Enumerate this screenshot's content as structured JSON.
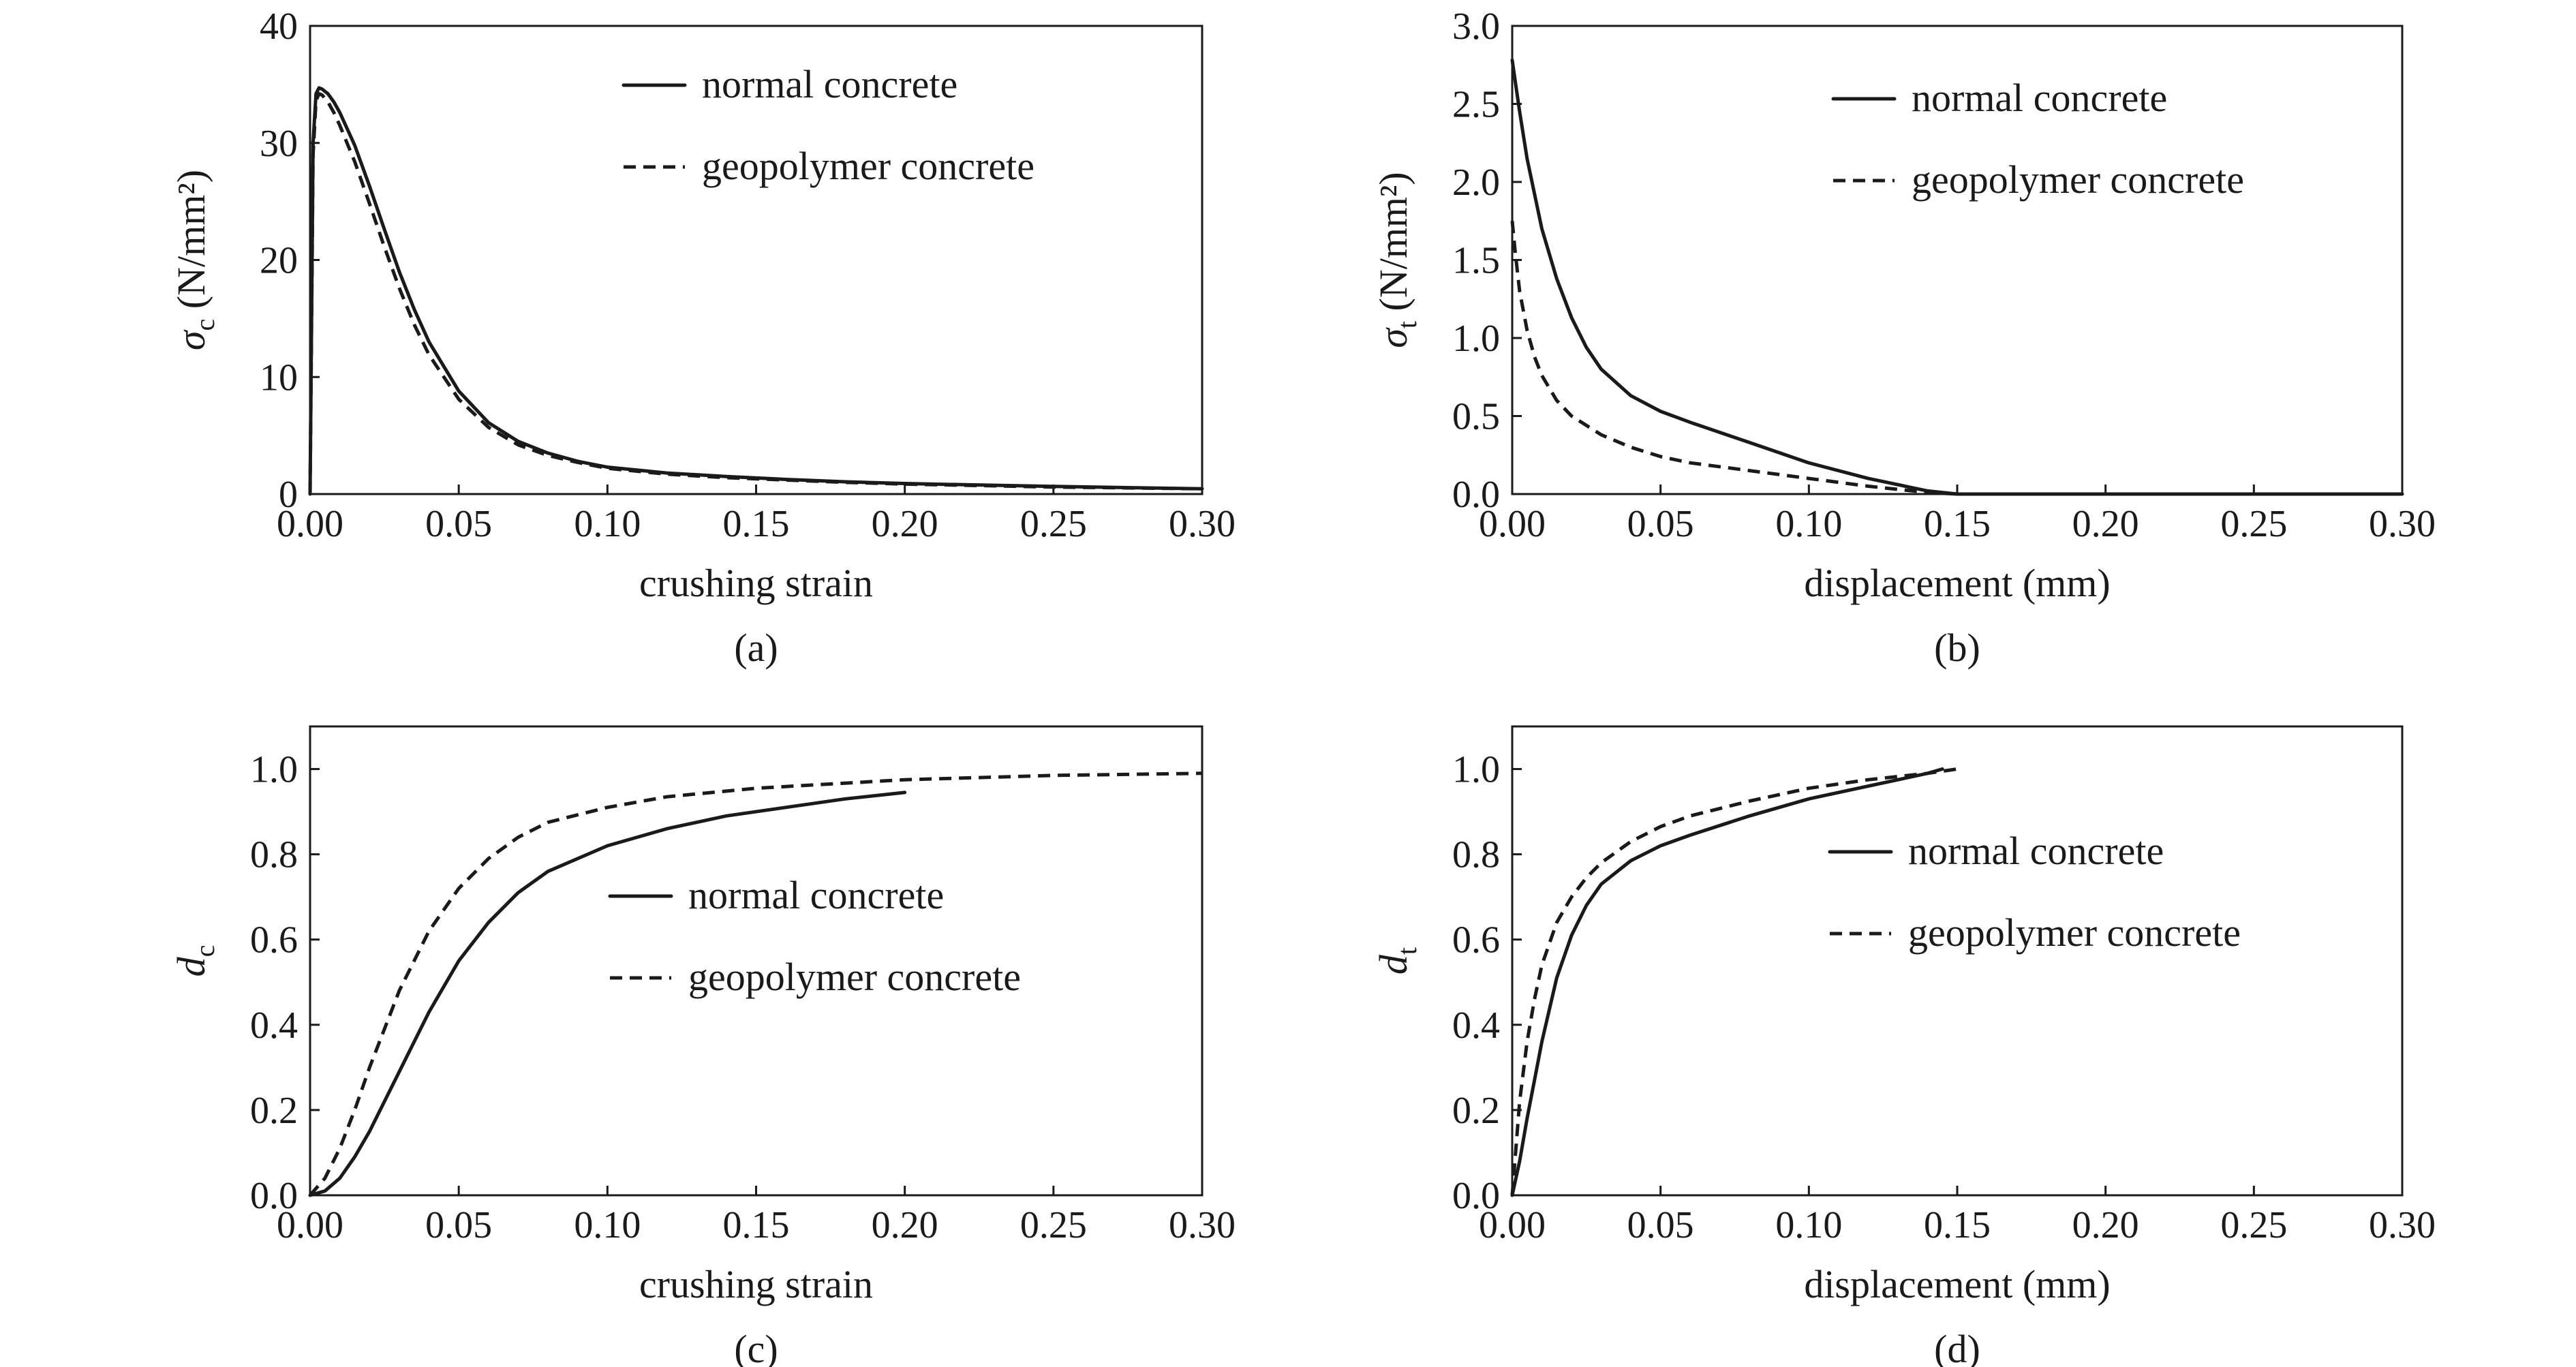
{
  "chart_data": [
    {
      "id": "a",
      "type": "line",
      "panel_label": "(a)",
      "title": "",
      "xlabel": "crushing strain",
      "ylabel": {
        "symbol": "σ",
        "subscript": "c",
        "unit": "(N/mm²)"
      },
      "xlim": [
        0,
        0.3
      ],
      "ylim": [
        0,
        40
      ],
      "xticks": [
        0,
        0.05,
        0.1,
        0.15,
        0.2,
        0.25,
        0.3
      ],
      "xtick_labels": [
        "0.00",
        "0.05",
        "0.10",
        "0.15",
        "0.20",
        "0.25",
        "0.30"
      ],
      "yticks": [
        0,
        10,
        20,
        30,
        40
      ],
      "ytick_labels": [
        "0",
        "10",
        "20",
        "30",
        "40"
      ],
      "legend_position": "top-center",
      "series": [
        {
          "name": "normal concrete",
          "style": "solid",
          "x": [
            0,
            0.001,
            0.002,
            0.003,
            0.004,
            0.006,
            0.008,
            0.01,
            0.015,
            0.02,
            0.025,
            0.03,
            0.035,
            0.04,
            0.05,
            0.06,
            0.07,
            0.08,
            0.09,
            0.1,
            0.12,
            0.14,
            0.16,
            0.18,
            0.2,
            0.22,
            0.25,
            0.3
          ],
          "y": [
            0,
            30,
            34.2,
            34.7,
            34.6,
            34.2,
            33.5,
            32.6,
            29.8,
            26.3,
            22.6,
            19.0,
            15.8,
            13.0,
            8.8,
            6.1,
            4.5,
            3.5,
            2.8,
            2.3,
            1.8,
            1.5,
            1.25,
            1.05,
            0.9,
            0.8,
            0.65,
            0.45
          ]
        },
        {
          "name": "geopolymer concrete",
          "style": "dashed",
          "x": [
            0,
            0.001,
            0.002,
            0.003,
            0.004,
            0.006,
            0.008,
            0.01,
            0.015,
            0.02,
            0.025,
            0.03,
            0.035,
            0.04,
            0.05,
            0.06,
            0.07,
            0.08,
            0.09,
            0.1,
            0.12,
            0.14,
            0.16,
            0.18,
            0.2,
            0.22,
            0.25,
            0.3
          ],
          "y": [
            0,
            29,
            33.6,
            34.2,
            34.1,
            33.5,
            32.6,
            31.5,
            28.4,
            24.8,
            21.1,
            17.6,
            14.5,
            11.9,
            8.1,
            5.7,
            4.2,
            3.3,
            2.7,
            2.2,
            1.7,
            1.4,
            1.2,
            1.0,
            0.85,
            0.75,
            0.6,
            0.45
          ]
        }
      ]
    },
    {
      "id": "b",
      "type": "line",
      "panel_label": "(b)",
      "title": "",
      "xlabel": "displacement (mm)",
      "ylabel": {
        "symbol": "σ",
        "subscript": "t",
        "unit": "(N/mm²)"
      },
      "xlim": [
        0,
        0.3
      ],
      "ylim": [
        0,
        3
      ],
      "xticks": [
        0,
        0.05,
        0.1,
        0.15,
        0.2,
        0.25,
        0.3
      ],
      "xtick_labels": [
        "0.00",
        "0.05",
        "0.10",
        "0.15",
        "0.20",
        "0.25",
        "0.30"
      ],
      "yticks": [
        0,
        0.5,
        1,
        1.5,
        2,
        2.5,
        3
      ],
      "ytick_labels": [
        "0.0",
        "0.5",
        "1.0",
        "1.5",
        "2.0",
        "2.5",
        "3.0"
      ],
      "legend_position": "top-center",
      "series": [
        {
          "name": "normal concrete",
          "style": "solid",
          "x": [
            0,
            0.0025,
            0.005,
            0.01,
            0.015,
            0.02,
            0.025,
            0.03,
            0.04,
            0.05,
            0.06,
            0.08,
            0.1,
            0.12,
            0.14,
            0.15,
            0.3
          ],
          "y": [
            2.78,
            2.45,
            2.15,
            1.7,
            1.38,
            1.13,
            0.94,
            0.8,
            0.63,
            0.53,
            0.46,
            0.33,
            0.2,
            0.1,
            0.02,
            0,
            0
          ]
        },
        {
          "name": "geopolymer concrete",
          "style": "dashed",
          "x": [
            0,
            0.001,
            0.0025,
            0.005,
            0.0075,
            0.01,
            0.015,
            0.02,
            0.03,
            0.04,
            0.05,
            0.06,
            0.08,
            0.1,
            0.12,
            0.14,
            0.15
          ],
          "y": [
            1.75,
            1.55,
            1.3,
            1.05,
            0.88,
            0.76,
            0.6,
            0.5,
            0.38,
            0.3,
            0.24,
            0.2,
            0.15,
            0.1,
            0.05,
            0.01,
            0
          ]
        }
      ]
    },
    {
      "id": "c",
      "type": "line",
      "panel_label": "(c)",
      "title": "",
      "xlabel": "crushing strain",
      "ylabel": {
        "symbol": "d",
        "subscript": "c",
        "unit": ""
      },
      "xlim": [
        0,
        0.3
      ],
      "ylim": [
        0,
        1.1
      ],
      "xticks": [
        0,
        0.05,
        0.1,
        0.15,
        0.2,
        0.25,
        0.3
      ],
      "xtick_labels": [
        "0.00",
        "0.05",
        "0.10",
        "0.15",
        "0.20",
        "0.25",
        "0.30"
      ],
      "yticks": [
        0,
        0.2,
        0.4,
        0.6,
        0.8,
        1.0
      ],
      "ytick_labels": [
        "0.0",
        "0.2",
        "0.4",
        "0.6",
        "0.8",
        "1.0"
      ],
      "legend_position": "center",
      "series": [
        {
          "name": "normal concrete",
          "style": "solid",
          "x": [
            0,
            0.005,
            0.01,
            0.015,
            0.02,
            0.03,
            0.04,
            0.05,
            0.06,
            0.07,
            0.08,
            0.1,
            0.12,
            0.14,
            0.16,
            0.18,
            0.2
          ],
          "y": [
            0,
            0.01,
            0.04,
            0.09,
            0.15,
            0.29,
            0.43,
            0.55,
            0.64,
            0.71,
            0.76,
            0.82,
            0.86,
            0.89,
            0.91,
            0.93,
            0.945
          ]
        },
        {
          "name": "geopolymer concrete",
          "style": "dashed",
          "x": [
            0,
            0.005,
            0.01,
            0.015,
            0.02,
            0.03,
            0.04,
            0.05,
            0.06,
            0.07,
            0.08,
            0.1,
            0.12,
            0.15,
            0.2,
            0.25,
            0.3
          ],
          "y": [
            0,
            0.04,
            0.11,
            0.2,
            0.3,
            0.48,
            0.62,
            0.72,
            0.79,
            0.84,
            0.875,
            0.91,
            0.935,
            0.955,
            0.975,
            0.985,
            0.99
          ]
        }
      ]
    },
    {
      "id": "d",
      "type": "line",
      "panel_label": "(d)",
      "title": "",
      "xlabel": "displacement (mm)",
      "ylabel": {
        "symbol": "d",
        "subscript": "t",
        "unit": ""
      },
      "xlim": [
        0,
        0.3
      ],
      "ylim": [
        0,
        1.1
      ],
      "xticks": [
        0,
        0.05,
        0.1,
        0.15,
        0.2,
        0.25,
        0.3
      ],
      "xtick_labels": [
        "0.00",
        "0.05",
        "0.10",
        "0.15",
        "0.20",
        "0.25",
        "0.30"
      ],
      "yticks": [
        0,
        0.2,
        0.4,
        0.6,
        0.8,
        1.0
      ],
      "ytick_labels": [
        "0.0",
        "0.2",
        "0.4",
        "0.6",
        "0.8",
        "1.0"
      ],
      "legend_position": "center-right",
      "series": [
        {
          "name": "normal concrete",
          "style": "solid",
          "x": [
            0,
            0.0025,
            0.005,
            0.0075,
            0.01,
            0.015,
            0.02,
            0.025,
            0.03,
            0.04,
            0.05,
            0.06,
            0.08,
            0.1,
            0.12,
            0.14,
            0.145
          ],
          "y": [
            0,
            0.08,
            0.18,
            0.27,
            0.36,
            0.51,
            0.61,
            0.68,
            0.73,
            0.785,
            0.82,
            0.845,
            0.89,
            0.93,
            0.96,
            0.99,
            1.0
          ]
        },
        {
          "name": "geopolymer concrete",
          "style": "dashed",
          "x": [
            0,
            0.0025,
            0.005,
            0.0075,
            0.01,
            0.015,
            0.02,
            0.025,
            0.03,
            0.04,
            0.05,
            0.06,
            0.08,
            0.1,
            0.12,
            0.14,
            0.15
          ],
          "y": [
            0,
            0.22,
            0.36,
            0.46,
            0.54,
            0.64,
            0.7,
            0.745,
            0.78,
            0.83,
            0.865,
            0.89,
            0.925,
            0.955,
            0.975,
            0.99,
            1.0
          ]
        }
      ]
    }
  ]
}
